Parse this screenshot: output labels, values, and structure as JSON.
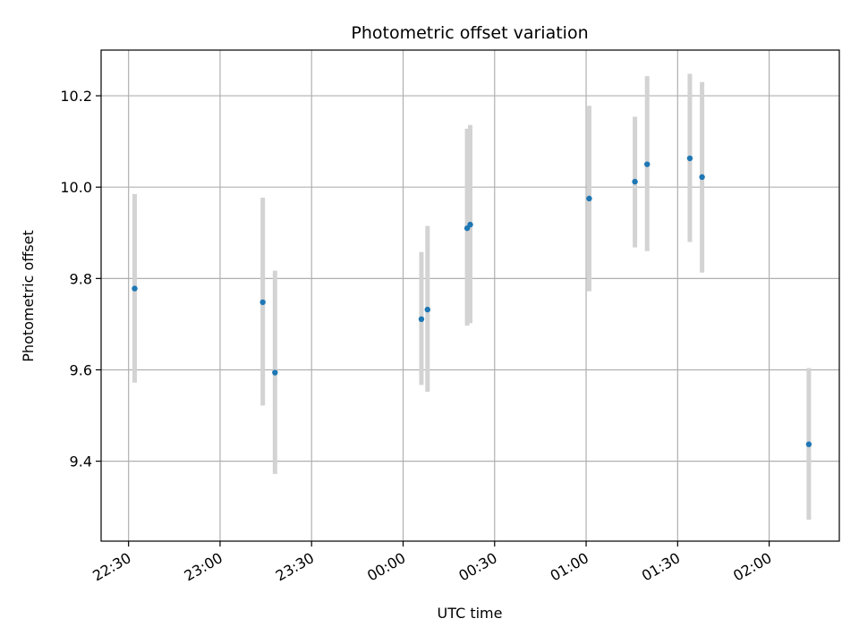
{
  "chart_data": {
    "type": "scatter",
    "title": "Photometric offset variation",
    "xlabel": "UTC time",
    "ylabel": "Photometric offset",
    "x_ticks": [
      "22:30",
      "23:00",
      "23:30",
      "00:00",
      "00:30",
      "01:00",
      "01:30",
      "02:00"
    ],
    "y_ticks": [
      "9.4",
      "9.6",
      "9.8",
      "10.0",
      "10.2"
    ],
    "xlim": [
      "22:21",
      "02:23"
    ],
    "ylim": [
      9.225,
      10.3
    ],
    "grid": true,
    "point_color": "#1f77b4",
    "errorbar_color": "#d3d3d3",
    "points": [
      {
        "x": "22:32",
        "y": 9.778,
        "ylow": 9.572,
        "yhigh": 9.985
      },
      {
        "x": "23:14",
        "y": 9.748,
        "ylow": 9.522,
        "yhigh": 9.977
      },
      {
        "x": "23:18",
        "y": 9.594,
        "ylow": 9.372,
        "yhigh": 9.817
      },
      {
        "x": "00:06",
        "y": 9.711,
        "ylow": 9.567,
        "yhigh": 9.858
      },
      {
        "x": "00:08",
        "y": 9.732,
        "ylow": 9.552,
        "yhigh": 9.915
      },
      {
        "x": "00:21",
        "y": 9.91,
        "ylow": 9.697,
        "yhigh": 10.128
      },
      {
        "x": "00:22",
        "y": 9.918,
        "ylow": 9.702,
        "yhigh": 10.136
      },
      {
        "x": "01:01",
        "y": 9.975,
        "ylow": 9.772,
        "yhigh": 10.178
      },
      {
        "x": "01:16",
        "y": 10.012,
        "ylow": 9.868,
        "yhigh": 10.154
      },
      {
        "x": "01:20",
        "y": 10.05,
        "ylow": 9.86,
        "yhigh": 10.243
      },
      {
        "x": "01:34",
        "y": 10.063,
        "ylow": 9.88,
        "yhigh": 10.248
      },
      {
        "x": "01:38",
        "y": 10.022,
        "ylow": 9.813,
        "yhigh": 10.23
      },
      {
        "x": "02:13",
        "y": 9.437,
        "ylow": 9.272,
        "yhigh": 9.604
      }
    ]
  }
}
